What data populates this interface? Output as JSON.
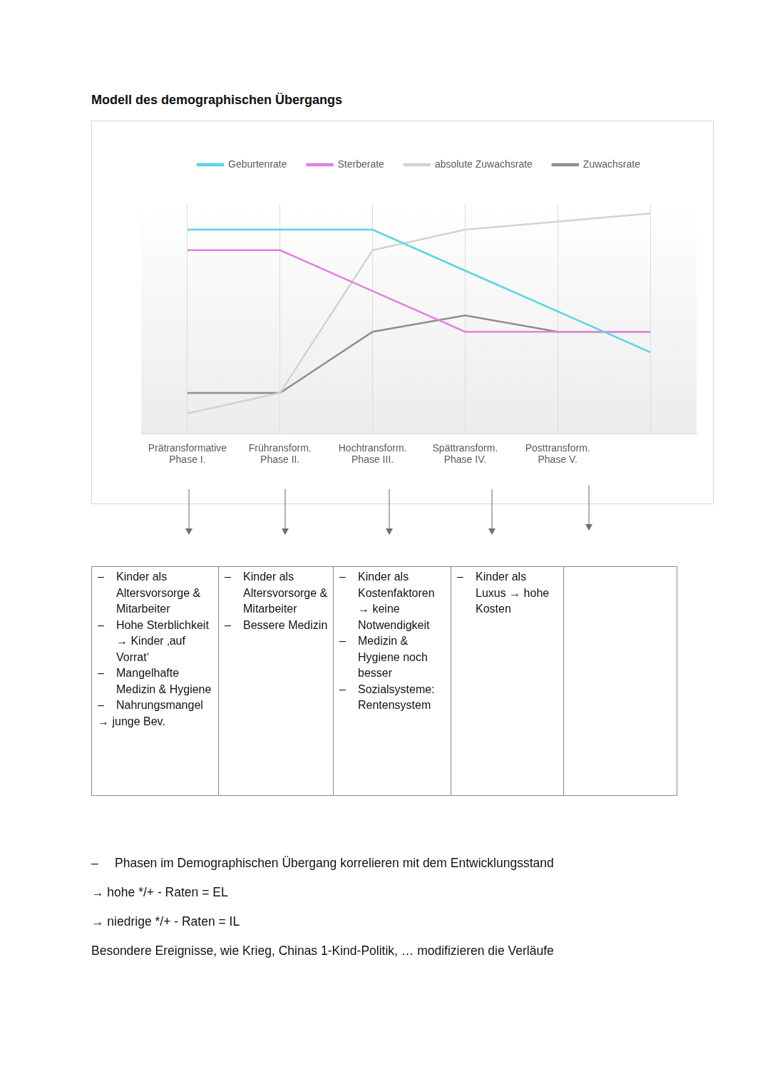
{
  "title": "Modell des demographischen Übergangs",
  "chart_data": {
    "type": "line",
    "categories": [
      "Prätransformative Phase I.",
      "Frühransform. Phase II.",
      "Hochtransform. Phase III.",
      "Spättransform. Phase IV.",
      "Posttransform. Phase V.",
      null
    ],
    "series": [
      {
        "name": "Geburtenrate",
        "color": "#5dd3e2",
        "values": [
          88.8,
          88.8,
          88.8,
          71.0,
          53.3,
          35.5
        ]
      },
      {
        "name": "Sterberate",
        "color": "#de82e0",
        "values": [
          79.9,
          79.9,
          62.1,
          44.4,
          44.4,
          44.4
        ]
      },
      {
        "name": "absolute Zuwachsrate",
        "color": "#d2d2d2",
        "values": [
          8.9,
          17.8,
          79.9,
          88.8,
          92.3,
          95.9
        ]
      },
      {
        "name": "Zuwachsrate",
        "color": "#8e8e8e",
        "values": [
          17.8,
          17.8,
          44.4,
          51.5,
          44.4,
          44.4
        ]
      }
    ],
    "ylim": [
      0,
      100
    ],
    "grid": true,
    "legend": "top",
    "tick_labels": "x"
  },
  "table": {
    "bullet": "–",
    "columns": [
      {
        "items": [
          "Kinder als Altersvorsorge & Mitarbeiter",
          "Hohe Sterblichkeit → Kinder ‚auf Vorrat‘",
          "Mangelhafte Medizin & Hygiene",
          "Nahrungsmangel"
        ],
        "conclusion": "→ junge Bev."
      },
      {
        "items": [
          "Kinder als Altersvorsorge & Mitarbeiter",
          "Bessere Medizin"
        ]
      },
      {
        "items": [
          "Kinder als Kostenfaktoren → keine Notwendigkeit",
          "Medizin & Hygiene noch besser",
          "Sozialsysteme: Rentensystem"
        ]
      },
      {
        "items": [
          "Kinder als Luxus → hohe Kosten"
        ]
      },
      {
        "items": []
      }
    ]
  },
  "notes": [
    {
      "bullet": "–",
      "text": "Phasen im Demographischen Übergang korrelieren mit dem Entwicklungsstand"
    },
    {
      "text": "→ hohe */+ - Raten = EL"
    },
    {
      "text": "→ niedrige */+ - Raten = IL"
    },
    {
      "text": "Besondere Ereignisse, wie Krieg, Chinas 1-Kind-Politik, … modifizieren die Verläufe"
    }
  ]
}
